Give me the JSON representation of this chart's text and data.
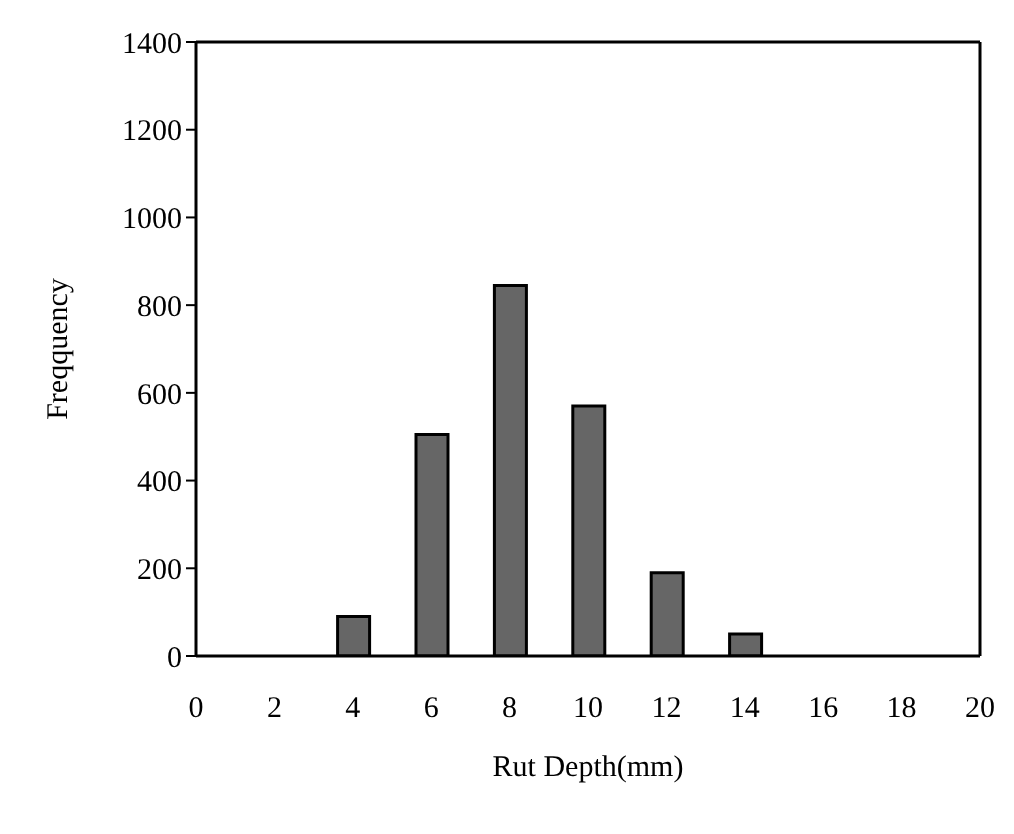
{
  "chart_data": {
    "type": "bar",
    "xlabel": "Rut Depth(mm)",
    "ylabel": "Freqquency",
    "x": [
      4,
      6,
      8,
      10,
      12,
      14
    ],
    "values": [
      90,
      505,
      845,
      570,
      190,
      50
    ],
    "color": "#666666",
    "xlim": [
      0,
      20
    ],
    "xticks": [
      0,
      2,
      4,
      6,
      8,
      10,
      12,
      14,
      16,
      18,
      20
    ],
    "ylim": [
      0,
      1400
    ],
    "yticks": [
      0,
      200,
      400,
      600,
      800,
      1000,
      1200,
      1400
    ],
    "grid": false,
    "legend": false
  }
}
